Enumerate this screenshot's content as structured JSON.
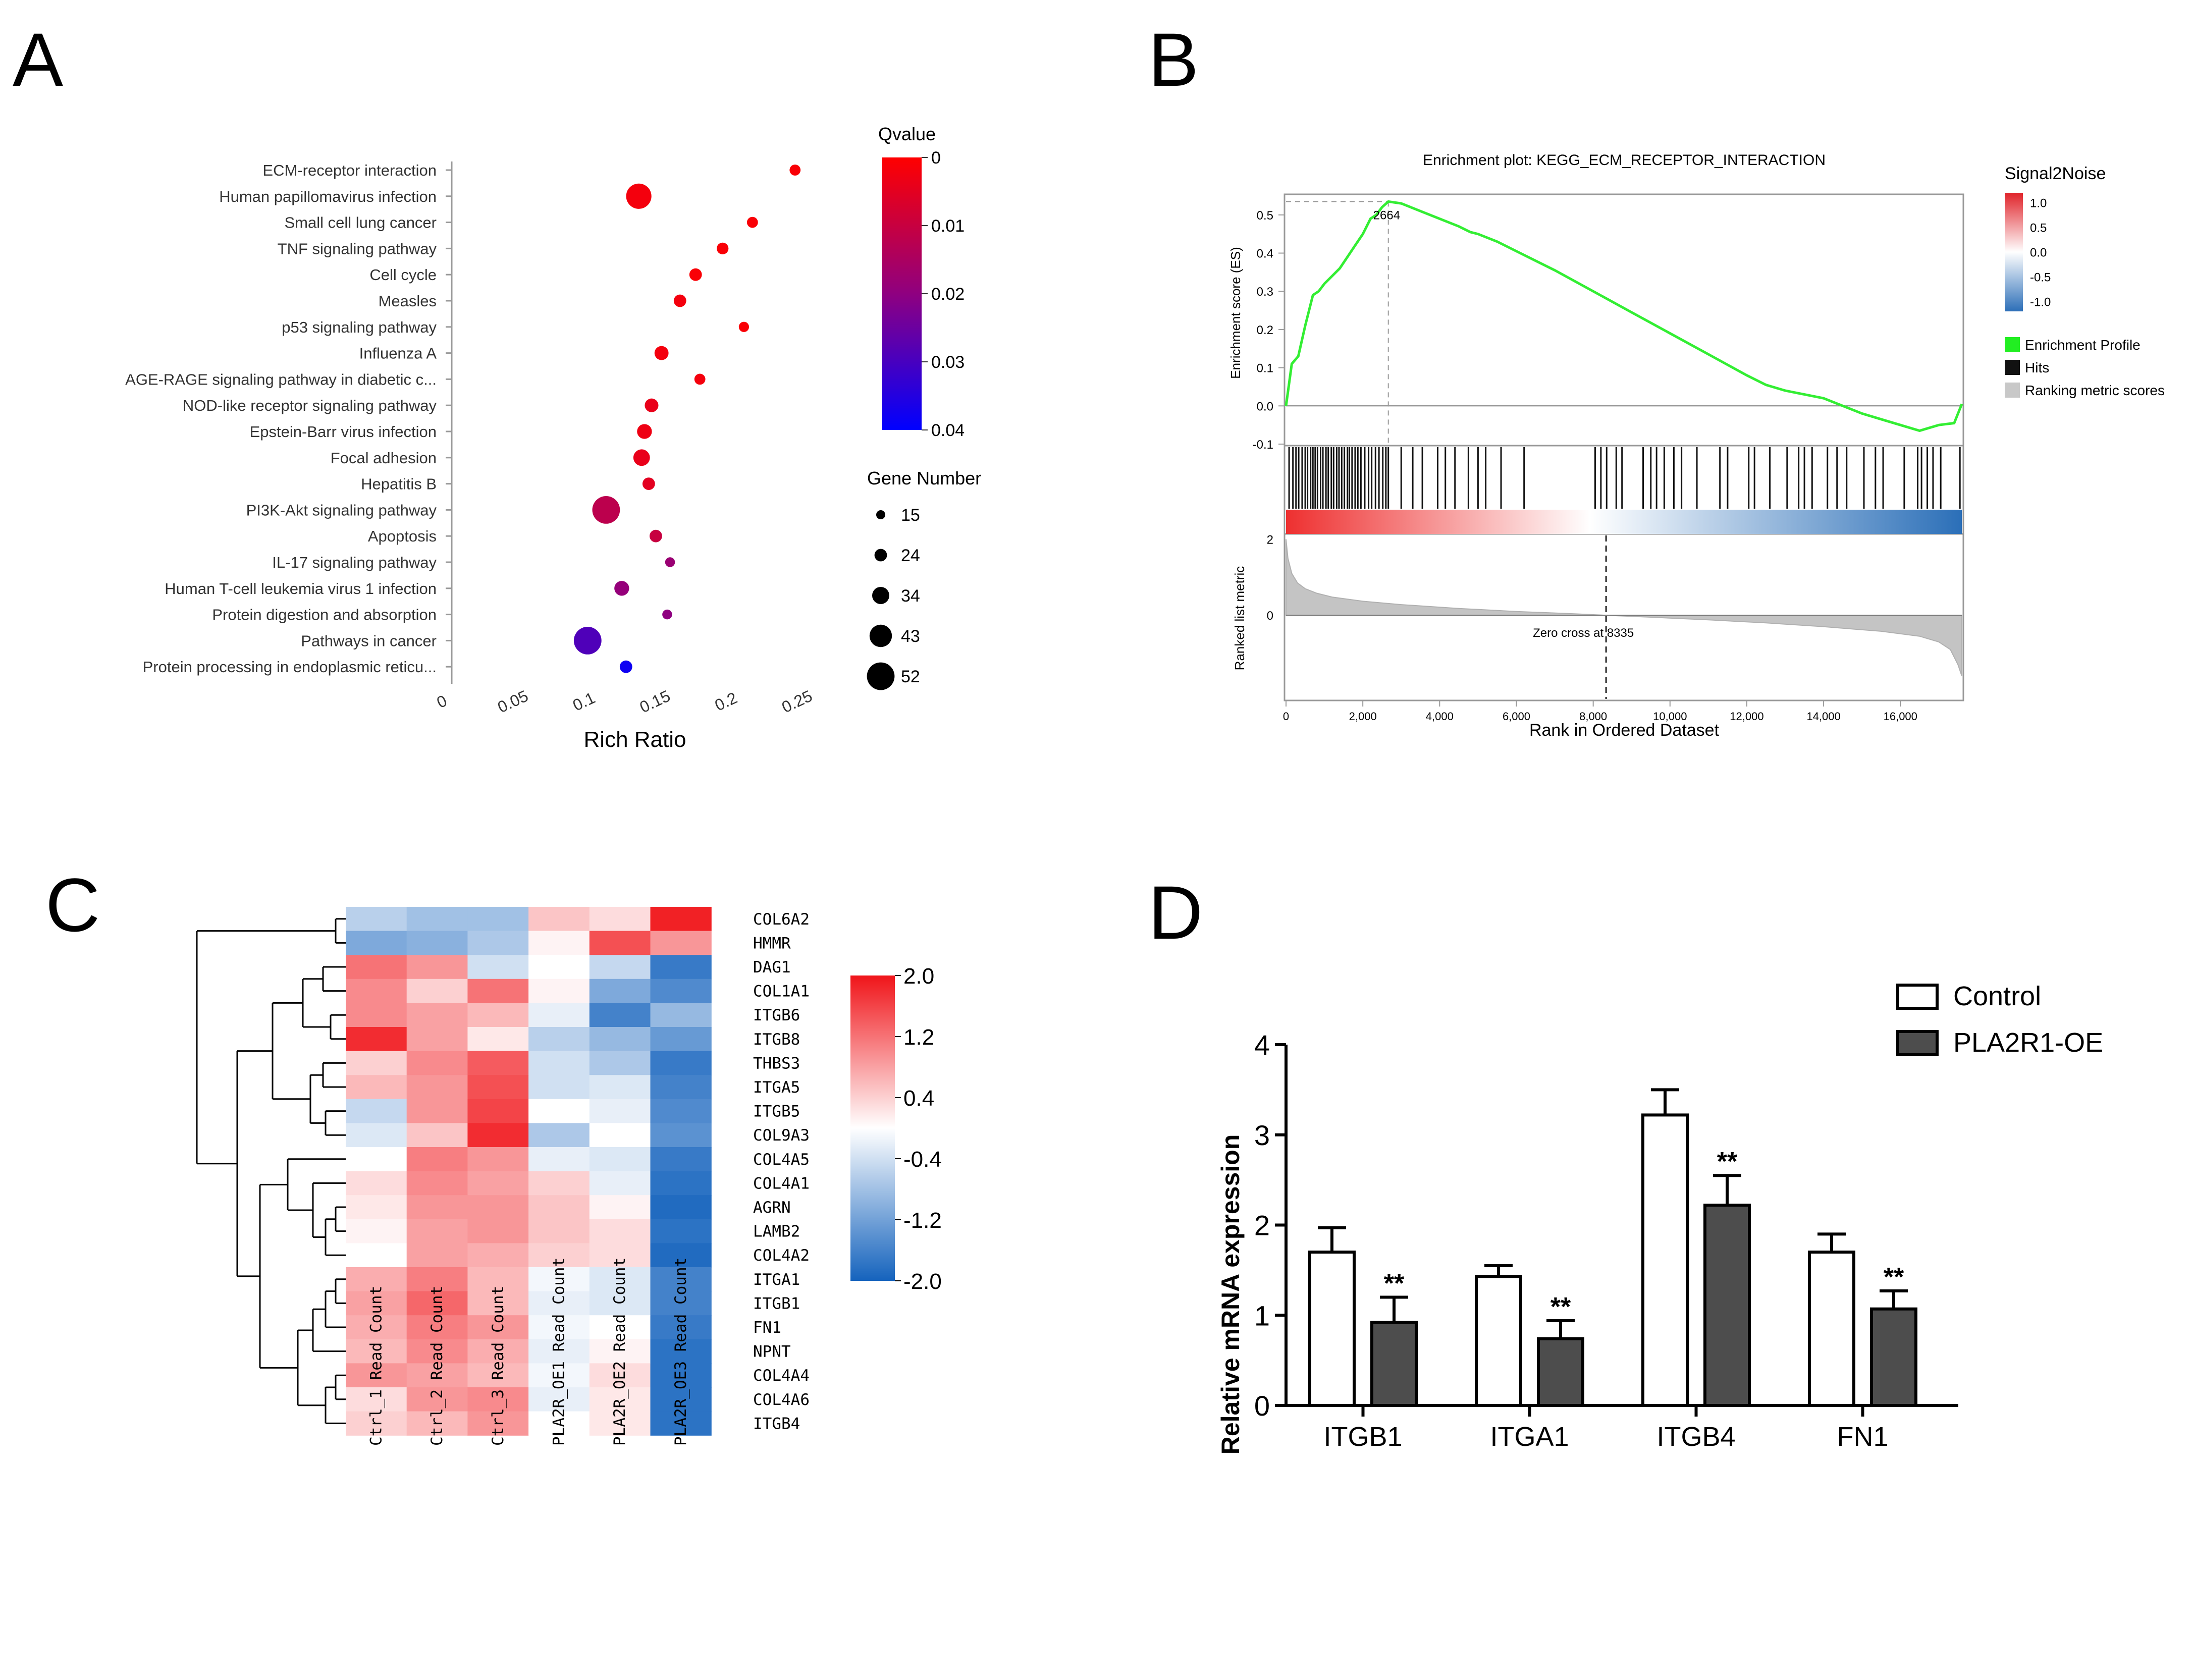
{
  "panels": {
    "a": "A",
    "b": "B",
    "c": "C",
    "d": "D"
  },
  "colors": {
    "red": "#ff1a1a",
    "blue": "#1a1aff",
    "green": "#22dd22",
    "bar_dark": "#4d4d4d",
    "bar_light": "#ffffff"
  },
  "chart_data": [
    {
      "type": "scatter",
      "panel": "A",
      "xlabel": "Rich Ratio",
      "xlim": [
        0,
        0.27
      ],
      "xticks": [
        "0",
        "0.05",
        "0.1",
        "0.15",
        "0.2",
        "0.25"
      ],
      "xtick_values": [
        0,
        0.05,
        0.1,
        0.15,
        0.2,
        0.25
      ],
      "categories": [
        "ECM-receptor interaction",
        "Human papillomavirus infection",
        "Small cell lung cancer",
        "TNF signaling pathway",
        "Cell cycle",
        "Measles",
        "p53 signaling pathway",
        "Influenza A",
        "AGE-RAGE signaling pathway in diabetic c...",
        "NOD-like receptor signaling pathway",
        "Epstein-Barr virus infection",
        "Focal adhesion",
        "Hepatitis B",
        "PI3K-Akt signaling pathway",
        "Apoptosis",
        "IL-17 signaling pathway",
        "Human T-cell leukemia virus 1 infection",
        "Protein digestion and absorption",
        "Pathways in cancer",
        "Protein processing in endoplasmic reticu..."
      ],
      "rich_ratio": [
        0.247,
        0.137,
        0.217,
        0.196,
        0.177,
        0.166,
        0.211,
        0.153,
        0.18,
        0.146,
        0.141,
        0.139,
        0.144,
        0.114,
        0.149,
        0.159,
        0.125,
        0.157,
        0.101,
        0.128
      ],
      "qvalue": [
        0.001,
        0.002,
        0.001,
        0.001,
        0.001,
        0.002,
        0.001,
        0.002,
        0.002,
        0.004,
        0.003,
        0.004,
        0.005,
        0.012,
        0.01,
        0.018,
        0.019,
        0.02,
        0.029,
        0.038
      ],
      "gene_number": [
        20,
        48,
        20,
        22,
        24,
        24,
        18,
        28,
        20,
        27,
        30,
        33,
        24,
        52,
        24,
        17,
        30,
        17,
        52,
        24
      ],
      "legend": {
        "qvalue_title": "Qvalue",
        "qvalue_ticks": [
          "0",
          "0.01",
          "0.02",
          "0.03",
          "0.04"
        ],
        "qvalue_tick_values": [
          0,
          0.01,
          0.02,
          0.03,
          0.04
        ],
        "gene_title": "Gene Number",
        "gene_ticks": [
          "15",
          "24",
          "34",
          "43",
          "52"
        ],
        "gene_tick_values": [
          15,
          24,
          34,
          43,
          52
        ]
      }
    },
    {
      "type": "line",
      "panel": "B",
      "title": "Enrichment plot: KEGG_ECM_RECEPTOR_INTERACTION",
      "ylabel": "Enrichment score (ES)",
      "ylim": [
        -0.1,
        0.55
      ],
      "yticks": [
        "0.5",
        "0.4",
        "0.3",
        "0.2",
        "0.1",
        "0.0",
        "-0.1"
      ],
      "ytick_values": [
        0.5,
        0.4,
        0.3,
        0.2,
        0.1,
        0.0,
        -0.1
      ],
      "peak_label": "2664",
      "peak_rank": 2664,
      "peak_es": 0.535,
      "es_curve": {
        "x": [
          0,
          150,
          320,
          500,
          700,
          850,
          1000,
          1200,
          1400,
          1600,
          1800,
          2000,
          2200,
          2350,
          2500,
          2664,
          3000,
          3500,
          4000,
          4500,
          4800,
          5000,
          5500,
          6000,
          7000,
          8000,
          9000,
          10000,
          11000,
          12000,
          12500,
          13000,
          13500,
          14000,
          14500,
          15000,
          15500,
          16000,
          16500,
          17000,
          17400,
          17600
        ],
        "y": [
          0.0,
          0.11,
          0.13,
          0.21,
          0.29,
          0.3,
          0.32,
          0.34,
          0.36,
          0.39,
          0.42,
          0.45,
          0.49,
          0.5,
          0.52,
          0.535,
          0.53,
          0.51,
          0.49,
          0.47,
          0.455,
          0.45,
          0.43,
          0.405,
          0.355,
          0.3,
          0.245,
          0.19,
          0.135,
          0.08,
          0.055,
          0.04,
          0.03,
          0.02,
          0.0,
          -0.02,
          -0.035,
          -0.05,
          -0.065,
          -0.05,
          -0.045,
          0.005
        ]
      },
      "hits": [
        80,
        180,
        260,
        330,
        420,
        500,
        560,
        640,
        700,
        760,
        820,
        900,
        960,
        1040,
        1100,
        1180,
        1240,
        1320,
        1380,
        1450,
        1520,
        1600,
        1650,
        1720,
        1800,
        1870,
        1950,
        2050,
        2150,
        2230,
        2330,
        2420,
        2520,
        2600,
        2664,
        3000,
        3300,
        3550,
        3950,
        4150,
        4400,
        4750,
        5000,
        5200,
        5600,
        6200,
        8050,
        8200,
        8350,
        8600,
        8750,
        9300,
        9500,
        9650,
        9850,
        10100,
        10300,
        10700,
        11300,
        11500,
        12050,
        12200,
        12600,
        13050,
        13350,
        13500,
        13700,
        14100,
        14350,
        14600,
        15050,
        15350,
        15550,
        16100,
        16450,
        16550,
        16700,
        16850,
        17050,
        17550
      ],
      "ranked_metric": {
        "ylabel": "Ranked list metric",
        "yticks": [
          "2",
          "0"
        ],
        "ytick_values": [
          2,
          0
        ],
        "ylim": [
          -2.2,
          2.1
        ],
        "x": [
          0,
          50,
          150,
          300,
          500,
          800,
          1200,
          2000,
          3000,
          4500,
          6000,
          7500,
          8335,
          9500,
          11000,
          12500,
          14000,
          15500,
          16500,
          17000,
          17300,
          17500,
          17600
        ],
        "y": [
          2.0,
          1.5,
          1.1,
          0.85,
          0.7,
          0.58,
          0.48,
          0.37,
          0.28,
          0.18,
          0.1,
          0.04,
          0.0,
          -0.05,
          -0.12,
          -0.2,
          -0.3,
          -0.42,
          -0.55,
          -0.7,
          -0.9,
          -1.3,
          -1.6
        ]
      },
      "zero_cross_label": "Zero cross at 8335",
      "zero_cross": 8335,
      "xlabel": "Rank in Ordered Dataset",
      "xlim": [
        0,
        17600
      ],
      "xticks": [
        "0",
        "2,000",
        "4,000",
        "6,000",
        "8,000",
        "10,000",
        "12,000",
        "14,000",
        "16,000"
      ],
      "xtick_values": [
        0,
        2000,
        4000,
        6000,
        8000,
        10000,
        12000,
        14000,
        16000
      ],
      "legend": {
        "title": "Signal2Noise",
        "scale_ticks": [
          "1.0",
          "0.5",
          "0.0",
          "-0.5",
          "-1.0"
        ],
        "scale_tick_values": [
          1.0,
          0.5,
          0.0,
          -0.5,
          -1.0
        ],
        "items": [
          {
            "label": "Enrichment Profile",
            "color": "#22ee22"
          },
          {
            "label": "Hits",
            "color": "#111111"
          },
          {
            "label": "Ranking metric scores",
            "color": "#c8c8c8"
          }
        ]
      }
    },
    {
      "type": "heatmap",
      "panel": "C",
      "rows": [
        "COL6A2",
        "HMMR",
        "DAG1",
        "COL1A1",
        "ITGB6",
        "ITGB8",
        "THBS3",
        "ITGA5",
        "ITGB5",
        "COL9A3",
        "COL4A5",
        "COL4A1",
        "AGRN",
        "LAMB2",
        "COL4A2",
        "ITGA1",
        "ITGB1",
        "FN1",
        "NPNT",
        "COL4A4",
        "COL4A6",
        "ITGB4"
      ],
      "columns": [
        "Ctrl_1 Read Count",
        "Ctrl_2 Read Count",
        "Ctrl_3 Read Count",
        "PLA2R_OE1 Read Count",
        "PLA2R_OE2 Read Count",
        "PLA2R_OE3 Read Count"
      ],
      "values": [
        [
          -0.6,
          -0.8,
          -0.8,
          0.5,
          0.3,
          1.9
        ],
        [
          -1.1,
          -1.0,
          -0.7,
          0.1,
          1.5,
          0.9
        ],
        [
          1.2,
          0.9,
          -0.4,
          0.0,
          -0.5,
          -1.7
        ],
        [
          1.0,
          0.4,
          1.2,
          0.1,
          -1.1,
          -1.5
        ],
        [
          1.0,
          0.8,
          0.6,
          -0.2,
          -1.6,
          -0.9
        ],
        [
          1.8,
          0.8,
          0.2,
          -0.6,
          -0.9,
          -1.3
        ],
        [
          0.4,
          1.0,
          1.4,
          -0.4,
          -0.7,
          -1.7
        ],
        [
          0.6,
          0.9,
          1.5,
          -0.4,
          -0.3,
          -1.6
        ],
        [
          -0.5,
          0.9,
          1.6,
          0.0,
          -0.2,
          -1.5
        ],
        [
          -0.3,
          0.5,
          1.8,
          -0.7,
          0.0,
          -1.4
        ],
        [
          0.0,
          1.1,
          0.9,
          -0.2,
          -0.3,
          -1.7
        ],
        [
          0.3,
          1.0,
          0.8,
          0.4,
          -0.2,
          -1.8
        ],
        [
          0.2,
          0.9,
          0.9,
          0.5,
          0.1,
          -1.9
        ],
        [
          0.1,
          0.8,
          0.9,
          0.5,
          0.3,
          -1.8
        ],
        [
          0.0,
          0.8,
          0.7,
          0.4,
          0.3,
          -1.9
        ],
        [
          0.7,
          1.1,
          0.6,
          -0.1,
          -0.3,
          -1.6
        ],
        [
          0.8,
          1.3,
          0.6,
          -0.2,
          -0.3,
          -1.6
        ],
        [
          0.7,
          1.1,
          0.9,
          -0.1,
          0.0,
          -1.7
        ],
        [
          0.6,
          1.0,
          0.7,
          -0.2,
          0.1,
          -1.8
        ],
        [
          0.9,
          0.8,
          0.6,
          -0.1,
          0.3,
          -1.8
        ],
        [
          0.3,
          0.9,
          1.0,
          -0.2,
          0.2,
          -1.8
        ],
        [
          0.4,
          0.6,
          0.9,
          0.0,
          0.2,
          -1.8
        ]
      ],
      "color_scale": {
        "min": -2.0,
        "max": 2.0,
        "ticks": [
          "2.0",
          "1.2",
          "0.4",
          "-0.4",
          "-1.2",
          "-2.0"
        ],
        "tick_values": [
          2.0,
          1.2,
          0.4,
          -0.4,
          -1.2,
          -2.0
        ]
      }
    },
    {
      "type": "bar",
      "panel": "D",
      "ylabel": "Relative mRNA expression",
      "ylim": [
        0,
        4
      ],
      "yticks": [
        "0",
        "1",
        "2",
        "3",
        "4"
      ],
      "ytick_values": [
        0,
        1,
        2,
        3,
        4
      ],
      "categories": [
        "ITGB1",
        "ITGA1",
        "ITGB4",
        "FN1"
      ],
      "series": [
        {
          "name": "Control",
          "values": [
            1.7,
            1.43,
            3.22,
            1.7
          ],
          "errors": [
            0.27,
            0.12,
            0.28,
            0.2
          ]
        },
        {
          "name": "PLA2R1-OE",
          "values": [
            0.92,
            0.74,
            2.22,
            1.07
          ],
          "errors": [
            0.28,
            0.2,
            0.33,
            0.2
          ]
        }
      ],
      "significance": [
        "**",
        "**",
        "**",
        "**"
      ]
    }
  ]
}
